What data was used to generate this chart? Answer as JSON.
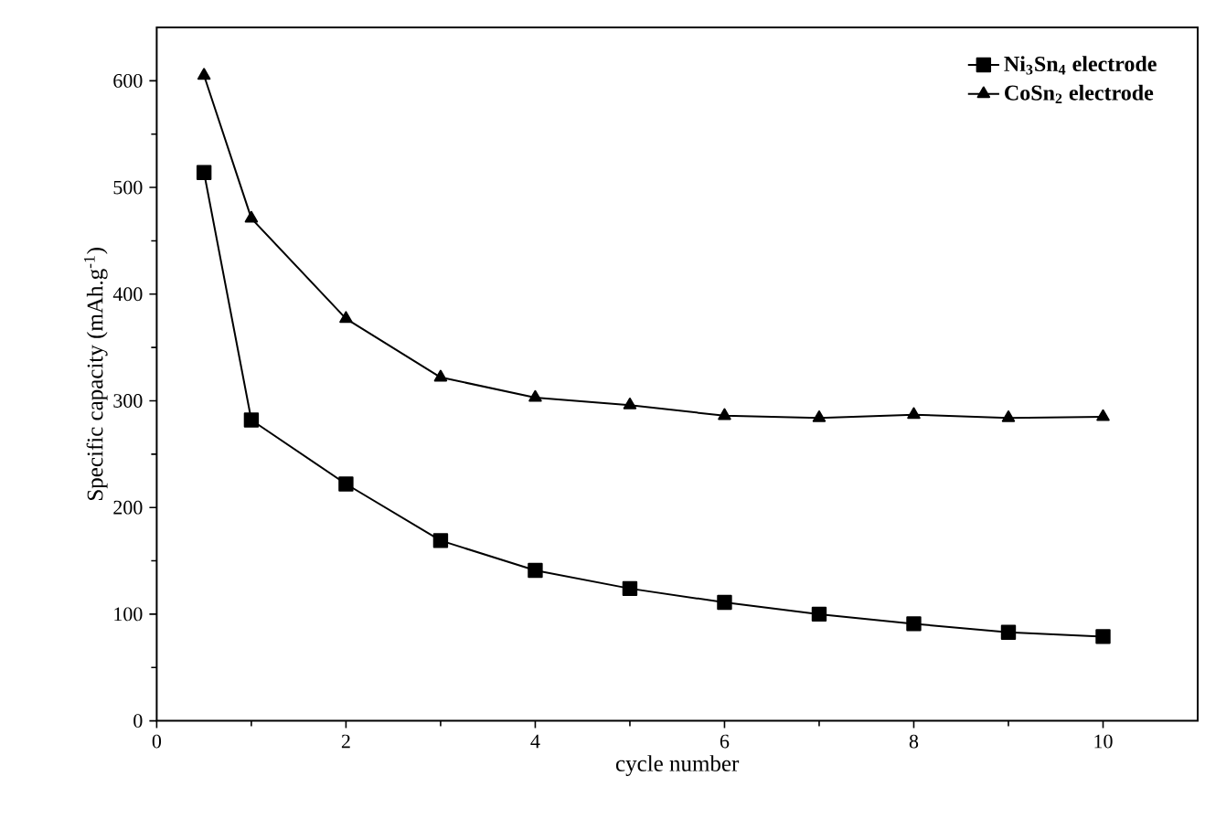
{
  "chart_data": {
    "type": "line",
    "xlabel": "cycle number",
    "ylabel": "Specific capacity (mAh.g$^{-1}$)",
    "xlim": [
      0,
      11
    ],
    "xticks": [
      0,
      2,
      4,
      6,
      8,
      10
    ],
    "ylim": [
      0,
      650
    ],
    "yticks": [
      0,
      100,
      200,
      300,
      400,
      500,
      600
    ],
    "grid": false,
    "legend": "top right",
    "line_style": "solid",
    "series": [
      {
        "name": "Ni$_{3}$Sn$_{4}$ electrode",
        "color": "#000000",
        "marker": "square",
        "x": [
          0.5,
          1,
          2,
          3,
          4,
          5,
          6,
          7,
          8,
          9,
          10
        ],
        "values": [
          514,
          282,
          222,
          169,
          141,
          124,
          111,
          100,
          91,
          83,
          79
        ]
      },
      {
        "name": "CoSn$_{2}$ electrode",
        "color": "#000000",
        "marker": "triangle",
        "x": [
          0.5,
          1,
          2,
          3,
          4,
          5,
          6,
          7,
          8,
          9,
          10
        ],
        "values": [
          605,
          471,
          377,
          322,
          303,
          296,
          286,
          284,
          287,
          284,
          285
        ]
      }
    ]
  }
}
